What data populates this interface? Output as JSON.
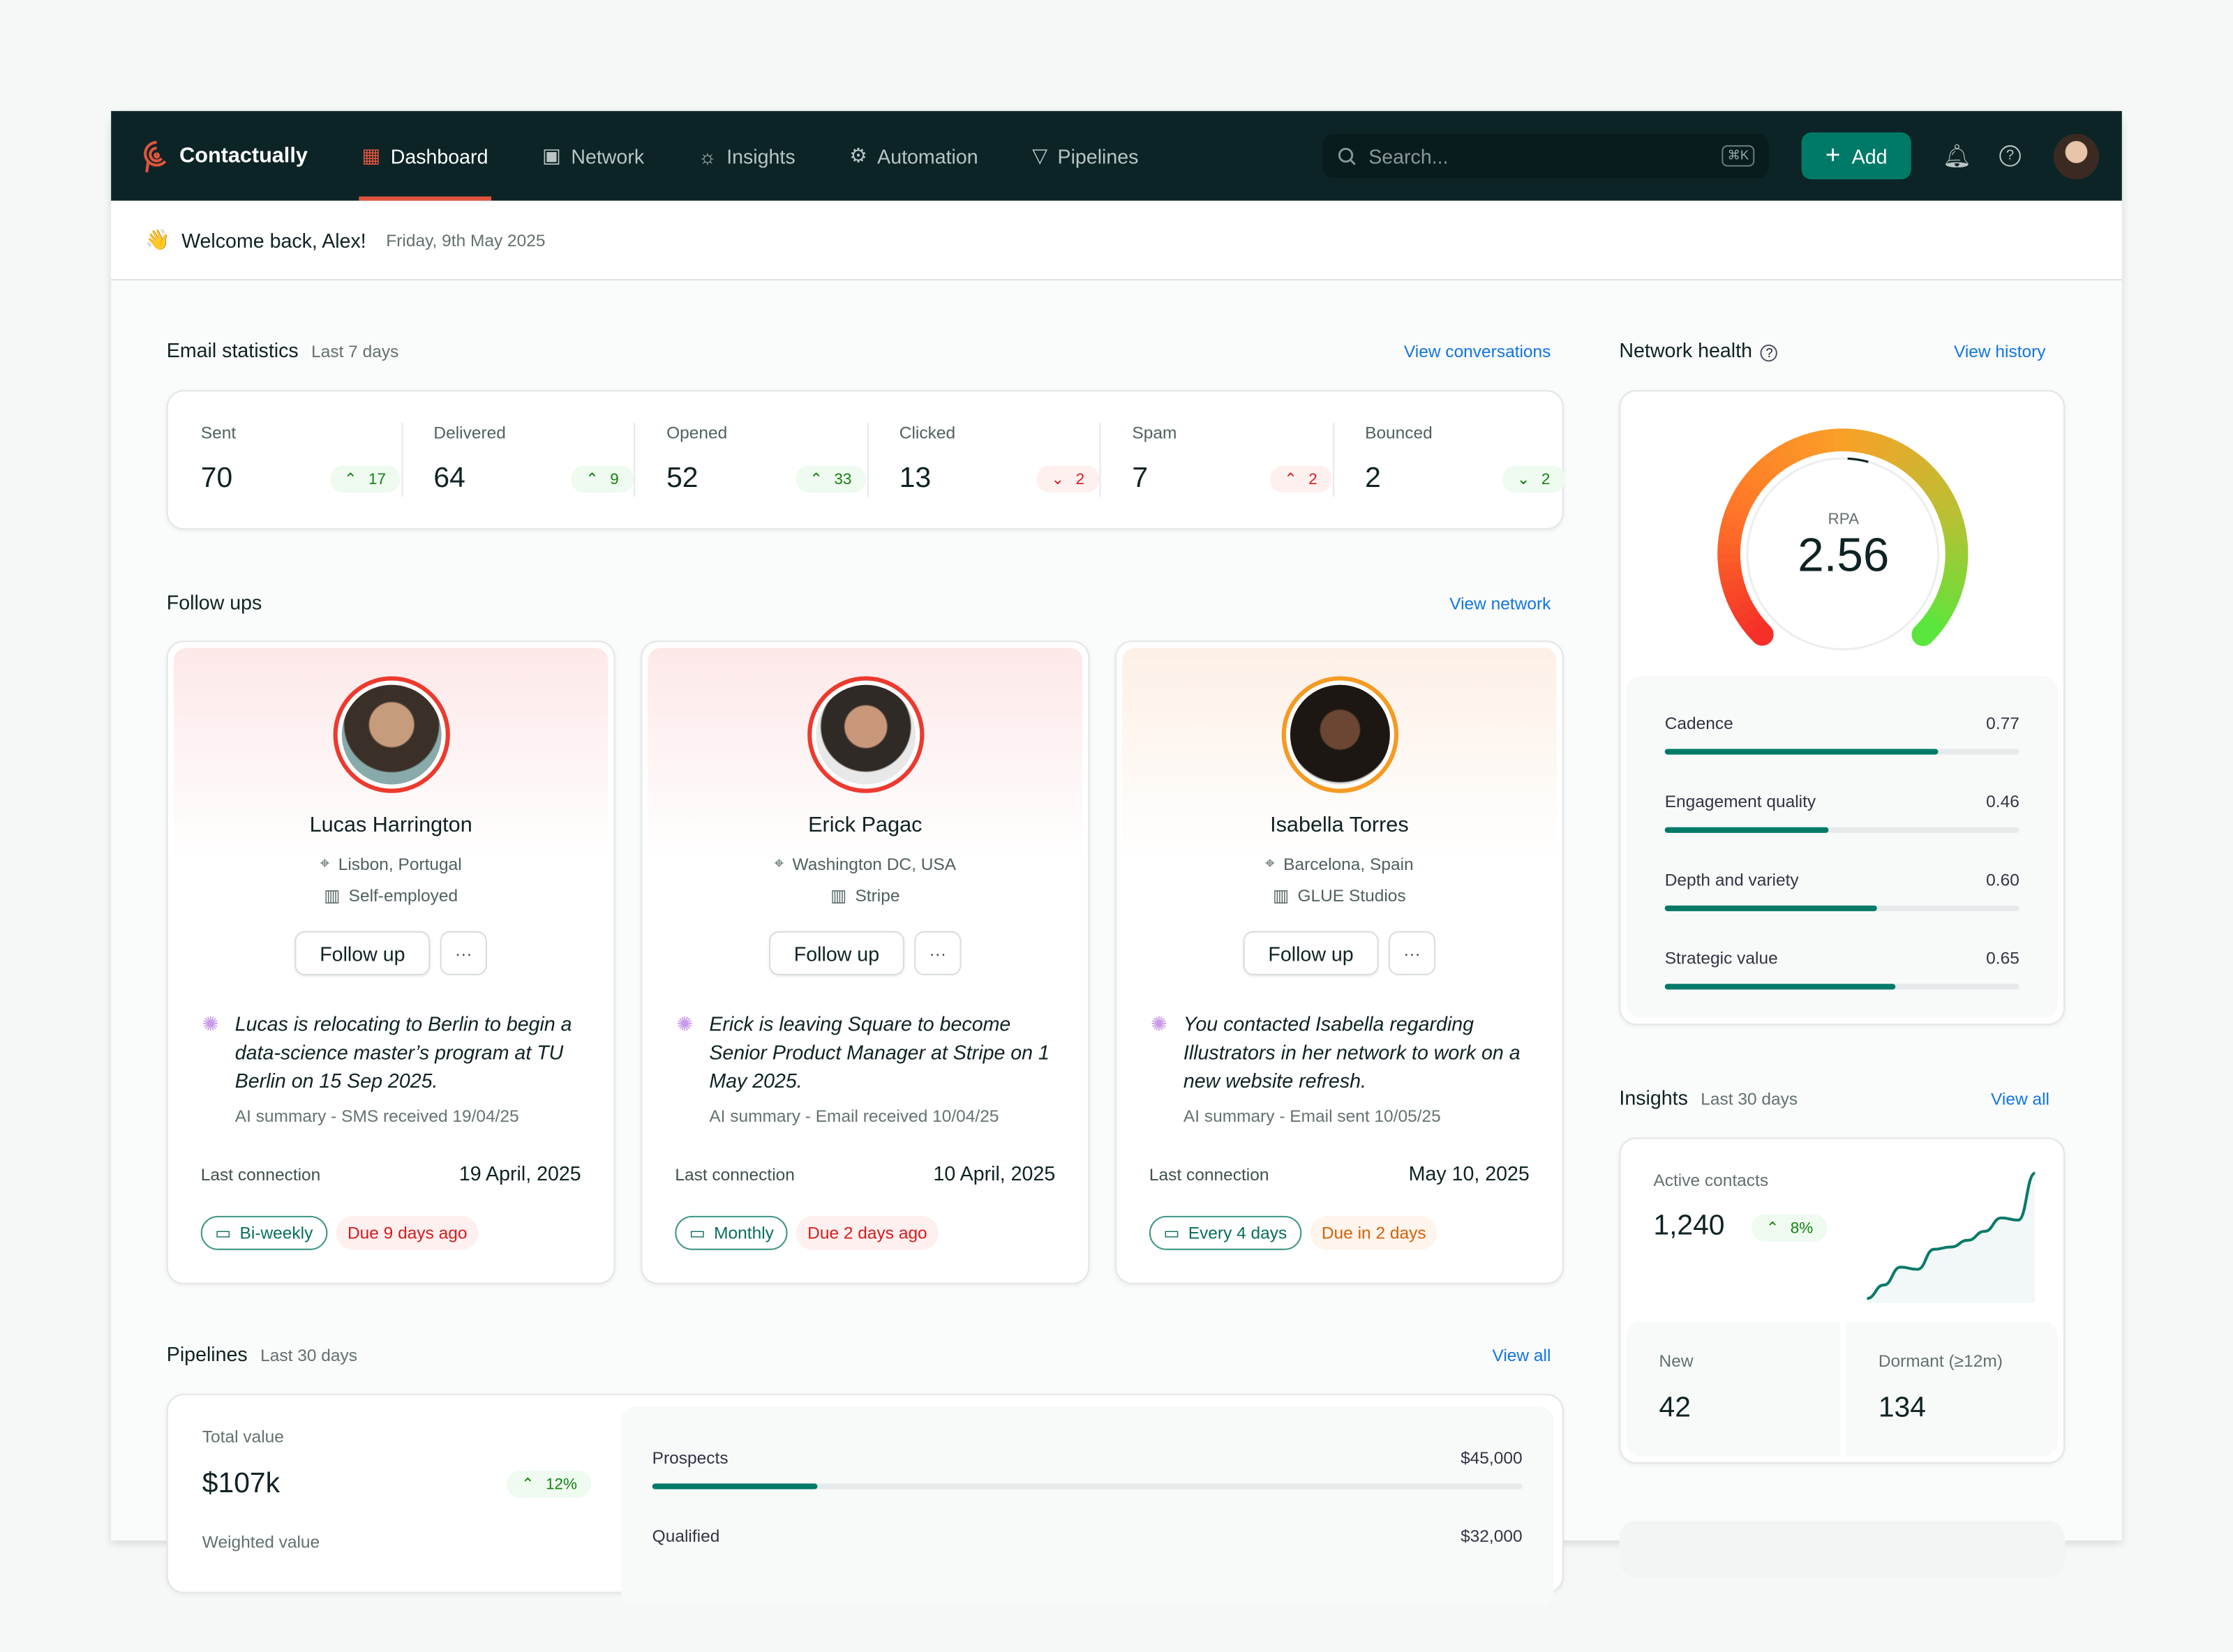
{
  "nav": {
    "brand": "Contactually",
    "items": [
      {
        "label": "Dashboard",
        "icon": "grid-icon",
        "active": true
      },
      {
        "label": "Network",
        "icon": "contacts-icon"
      },
      {
        "label": "Insights",
        "icon": "lightbulb-icon"
      },
      {
        "label": "Automation",
        "icon": "gear-icon"
      },
      {
        "label": "Pipelines",
        "icon": "funnel-icon"
      }
    ],
    "search_placeholder": "Search...",
    "shortcut": "⌘K",
    "add_label": "Add",
    "accent": "#e0553d",
    "primary": "#007a68"
  },
  "welcome": {
    "greeting": "Welcome back, Alex!",
    "date": "Friday, 9th May 2025",
    "emoji": "👋"
  },
  "email": {
    "title": "Email statistics",
    "period": "Last 7 days",
    "link": "View conversations",
    "stats": [
      {
        "label": "Sent",
        "value": "70",
        "delta": "17",
        "dir": "up",
        "good": true
      },
      {
        "label": "Delivered",
        "value": "64",
        "delta": "9",
        "dir": "up",
        "good": true
      },
      {
        "label": "Opened",
        "value": "52",
        "delta": "33",
        "dir": "up",
        "good": true
      },
      {
        "label": "Clicked",
        "value": "13",
        "delta": "2",
        "dir": "down",
        "good": false
      },
      {
        "label": "Spam",
        "value": "7",
        "delta": "2",
        "dir": "up",
        "good": false
      },
      {
        "label": "Bounced",
        "value": "2",
        "delta": "2",
        "dir": "down",
        "good": true
      }
    ]
  },
  "followups": {
    "title": "Follow ups",
    "link": "View network",
    "follow_label": "Follow up",
    "more_label": "···",
    "last_label": "Last connection",
    "cards": [
      {
        "name": "Lucas Harrington",
        "location": "Lisbon, Portugal",
        "company": "Self-employed",
        "summary": "Lucas is relocating to Berlin to begin a data-science master’s program at TU Berlin on 15 Sep 2025.",
        "source": "AI summary - SMS received 19/04/25",
        "last": "19 April, 2025",
        "cadence": "Bi-weekly",
        "due": "Due 9 days ago",
        "status": "overdue"
      },
      {
        "name": "Erick Pagac",
        "location": "Washington DC, USA",
        "company": "Stripe",
        "summary": "Erick is leaving Square to become Senior Product Manager at Stripe on 1 May 2025.",
        "source": "AI summary - Email received 10/04/25",
        "last": "10 April, 2025",
        "cadence": "Monthly",
        "due": "Due 2 days ago",
        "status": "overdue"
      },
      {
        "name": "Isabella Torres",
        "location": "Barcelona, Spain",
        "company": "GLUE Studios",
        "summary": "You contacted Isabella regarding Illustrators in her network to work on a new website refresh.",
        "source": "AI summary - Email sent 10/05/25",
        "last": "May 10, 2025",
        "cadence": "Every 4 days",
        "due": "Due in 2 days",
        "status": "upcoming"
      }
    ]
  },
  "pipelines": {
    "title": "Pipelines",
    "period": "Last 30 days",
    "link": "View all",
    "total_label": "Total value",
    "total": "$107k",
    "delta": "12%",
    "weighted_label": "Weighted value",
    "stages": [
      {
        "label": "Prospects",
        "value": "$45,000",
        "fill": 0.19
      },
      {
        "label": "Qualified",
        "value": "$32,000"
      }
    ]
  },
  "health": {
    "title": "Network health",
    "link": "View history",
    "gauge_label": "RPA",
    "gauge_value": "2.56",
    "metrics": [
      {
        "label": "Cadence",
        "value": "0.77"
      },
      {
        "label": "Engagement quality",
        "value": "0.46"
      },
      {
        "label": "Depth and variety",
        "value": "0.60"
      },
      {
        "label": "Strategic value",
        "value": "0.65"
      }
    ]
  },
  "insights": {
    "title": "Insights",
    "period": "Last 30 days",
    "link": "View all",
    "active_label": "Active contacts",
    "active": "1,240",
    "delta": "8%",
    "sparkline": [
      2,
      5,
      9,
      8.5,
      13,
      13.5,
      15,
      17,
      20,
      19.5,
      30
    ],
    "new_label": "New",
    "new": "42",
    "dormant_label": "Dormant (≥12m)",
    "dormant": "134"
  }
}
